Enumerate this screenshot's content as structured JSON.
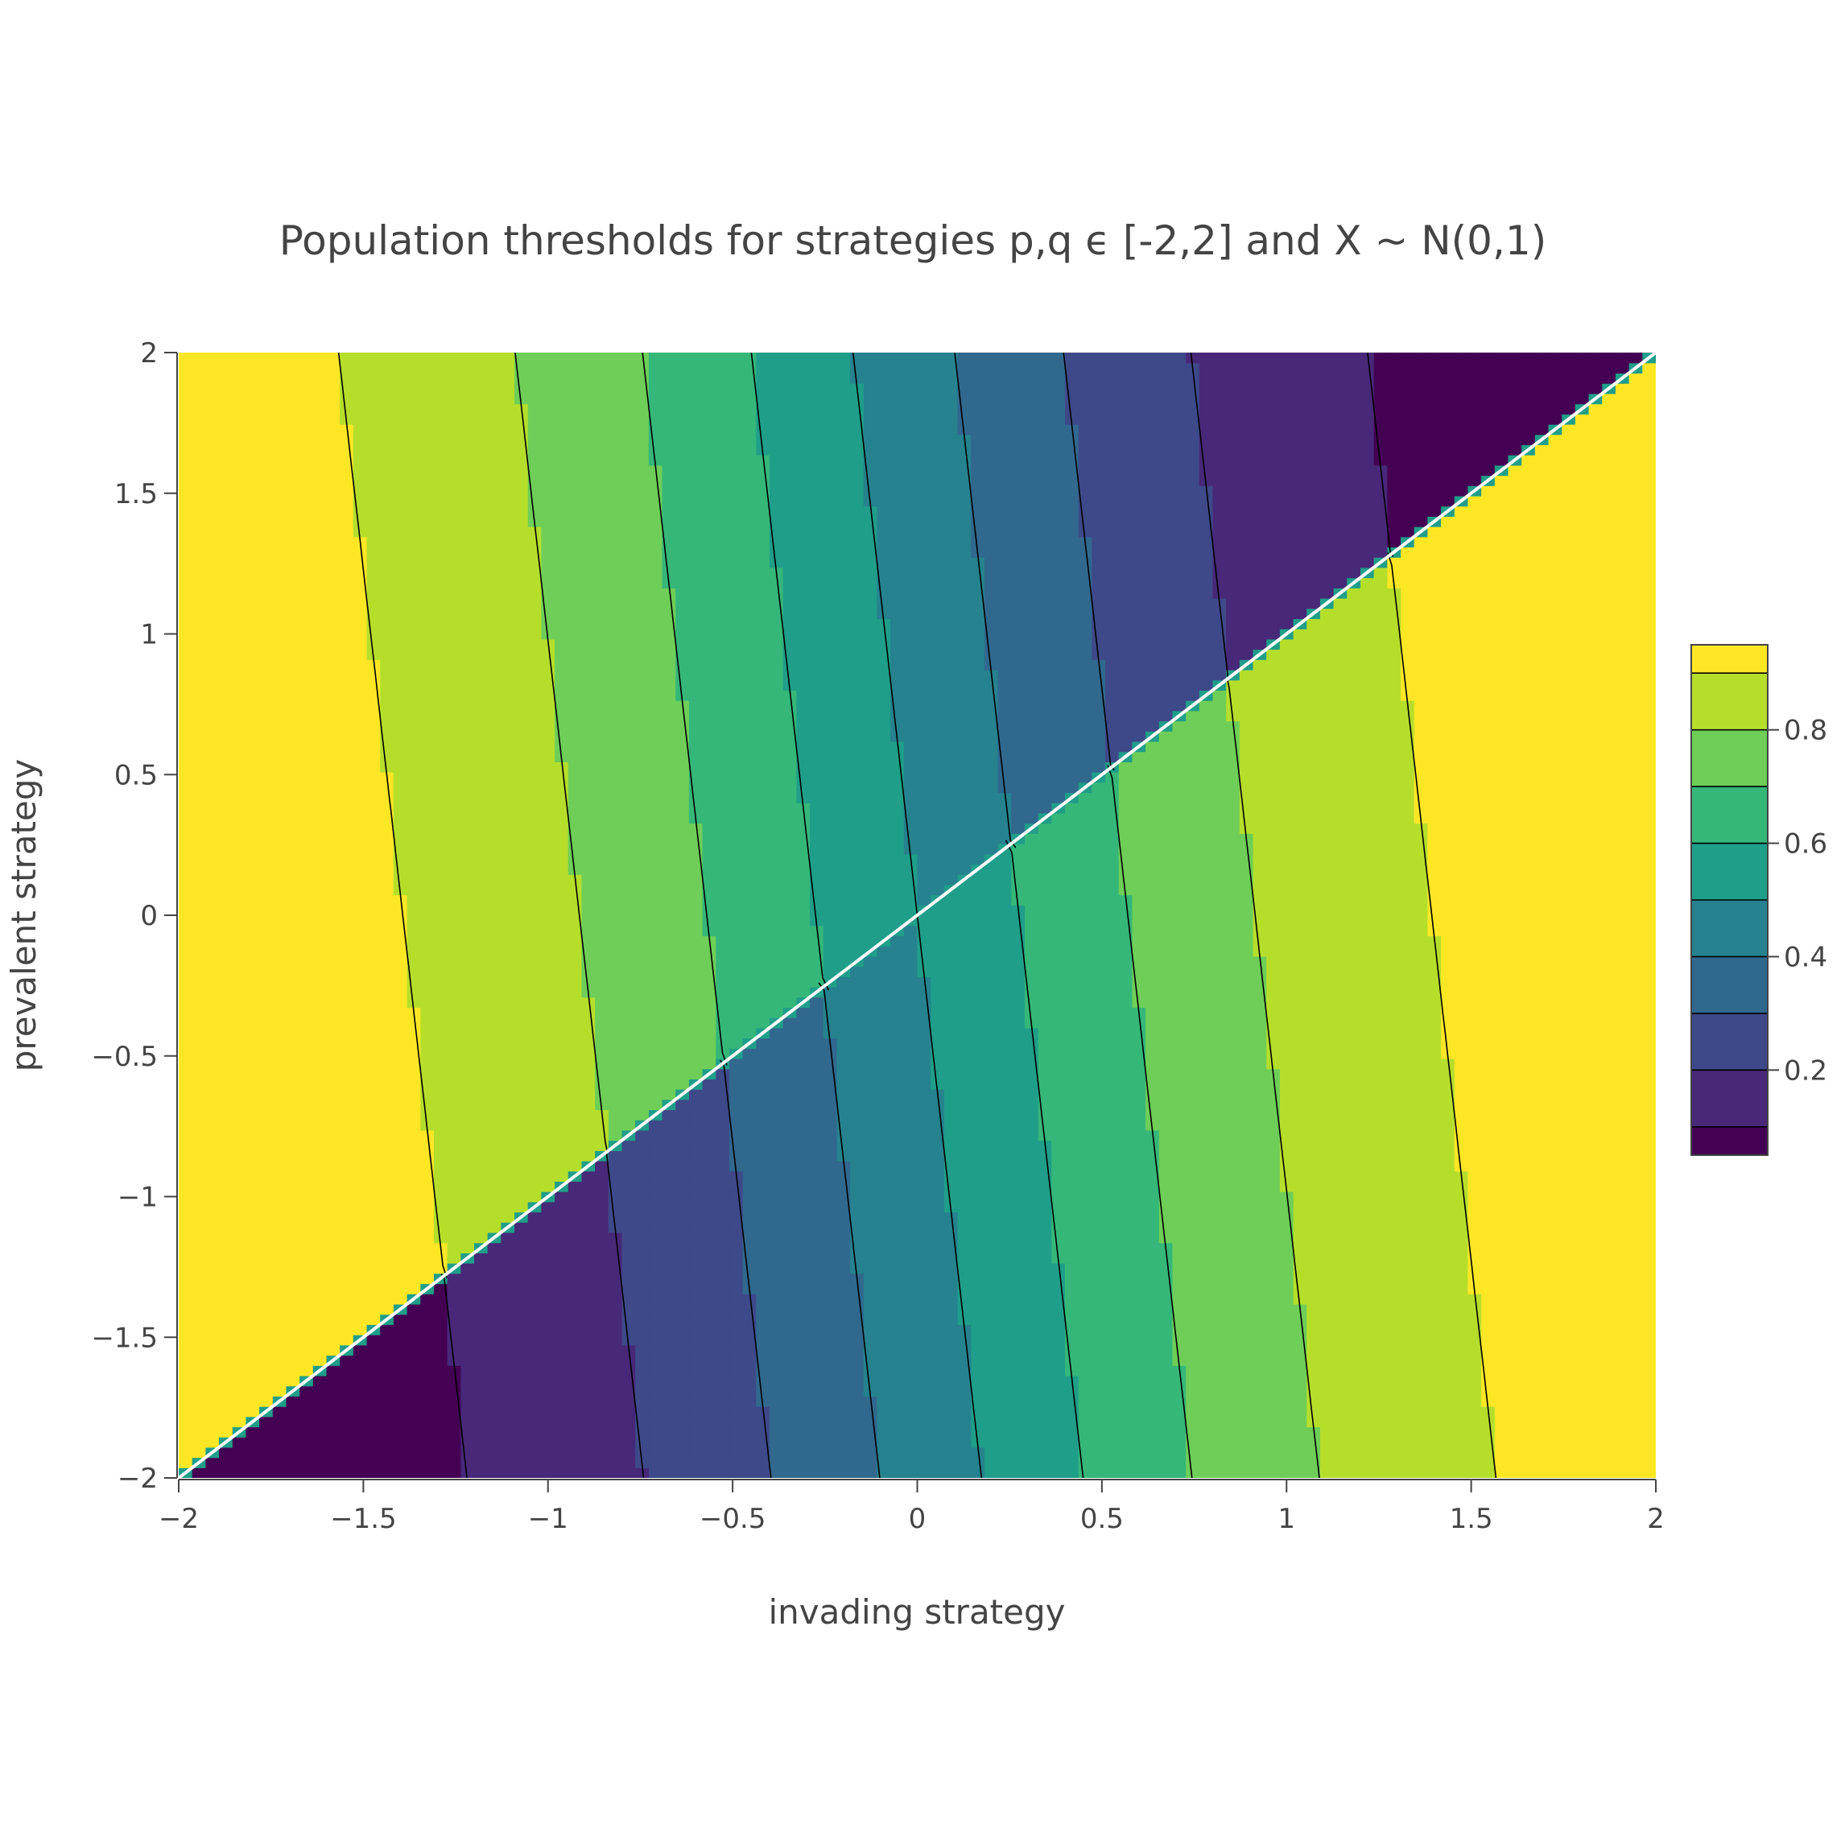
{
  "chart_data": {
    "type": "contour",
    "title": "Population thresholds for strategies p,q ϵ [-2,2] and X ~ N(0,1)",
    "xlabel": "invading strategy",
    "ylabel": "prevalent strategy",
    "xlim": [
      -2,
      2
    ],
    "ylim": [
      -2,
      2
    ],
    "x_ticks": [
      -2,
      -1.5,
      -1,
      -0.5,
      0,
      0.5,
      1,
      1.5,
      2
    ],
    "x_tick_labels": [
      "−2",
      "−1.5",
      "−1",
      "−0.5",
      "0",
      "0.5",
      "1",
      "1.5",
      "2"
    ],
    "y_ticks": [
      -2,
      -1.5,
      -1,
      -0.5,
      0,
      0.5,
      1,
      1.5,
      2
    ],
    "y_tick_labels": [
      "−2",
      "−1.5",
      "−1",
      "−0.5",
      "0",
      "0.5",
      "1",
      "1.5",
      "2"
    ],
    "contour_levels": [
      0.1,
      0.2,
      0.3,
      0.4,
      0.5,
      0.6,
      0.7,
      0.8,
      0.9
    ],
    "colorbar": {
      "tick_values": [
        0.2,
        0.4,
        0.6,
        0.8
      ],
      "tick_labels": [
        "0.2",
        "0.4",
        "0.6",
        "0.8"
      ],
      "range": [
        0.05,
        0.95
      ]
    },
    "colorscale": [
      "#440154",
      "#482878",
      "#3e4989",
      "#31688e",
      "#26828e",
      "#1f9e89",
      "#35b779",
      "#6ece58",
      "#b5de2b",
      "#fde725"
    ],
    "discontinuity": "diagonal p = q",
    "grid": false
  }
}
